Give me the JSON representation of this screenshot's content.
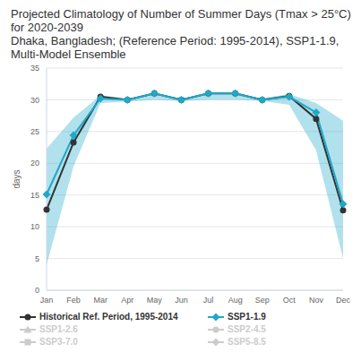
{
  "chart_data": {
    "type": "line",
    "title": "Projected Climatology of Number of Summer Days (Tmax > 25°C) for 2020-2039",
    "subtitle": "Dhaka, Bangladesh; (Reference Period: 1995-2014), SSP1-1.9, Multi-Model Ensemble",
    "y_label": "days",
    "categories": [
      "Jan",
      "Feb",
      "Mar",
      "Apr",
      "May",
      "Jun",
      "Jul",
      "Aug",
      "Sep",
      "Oct",
      "Nov",
      "Dec"
    ],
    "ylim": [
      0,
      35
    ],
    "yticks": [
      0,
      5,
      10,
      15,
      20,
      25,
      30,
      35
    ],
    "grid": true,
    "legend": "bottom",
    "series": [
      {
        "name": "Historical Ref. Period, 1995-2014",
        "color": "#333333",
        "marker": "circle",
        "values": [
          12.7,
          23.3,
          30.5,
          30,
          31,
          30,
          31,
          31,
          30,
          30.6,
          27,
          12.6
        ]
      },
      {
        "name": "SSP1-1.9",
        "color": "#1fa9c9",
        "marker": "diamond",
        "values": [
          15.1,
          24.4,
          30.2,
          30,
          31,
          30,
          31,
          31,
          30,
          30.5,
          28,
          13.6
        ],
        "lower": [
          4,
          19.5,
          29.5,
          29.7,
          30,
          29.8,
          30,
          30,
          29.8,
          29.2,
          22,
          5
        ],
        "upper": [
          22.3,
          27.2,
          30.7,
          30.2,
          31,
          30.2,
          31,
          31,
          30.2,
          30.9,
          29.5,
          26.7
        ]
      },
      {
        "name": "SSP1-2.6",
        "color": "#cccccc",
        "marker": "triangle",
        "values": [
          null,
          null,
          null,
          null,
          null,
          null,
          null,
          null,
          null,
          null,
          null,
          null
        ]
      },
      {
        "name": "SSP2-4.5",
        "color": "#cccccc",
        "marker": "circle",
        "values": [
          null,
          null,
          null,
          null,
          null,
          null,
          null,
          null,
          null,
          null,
          null,
          null
        ]
      },
      {
        "name": "SSP3-7.0",
        "color": "#cccccc",
        "marker": "square",
        "values": [
          null,
          null,
          null,
          null,
          null,
          null,
          null,
          null,
          null,
          null,
          null,
          null
        ]
      },
      {
        "name": "SSP5-8.5",
        "color": "#cccccc",
        "marker": "diamond",
        "values": [
          null,
          null,
          null,
          null,
          null,
          null,
          null,
          null,
          null,
          null,
          null,
          null
        ]
      }
    ]
  }
}
